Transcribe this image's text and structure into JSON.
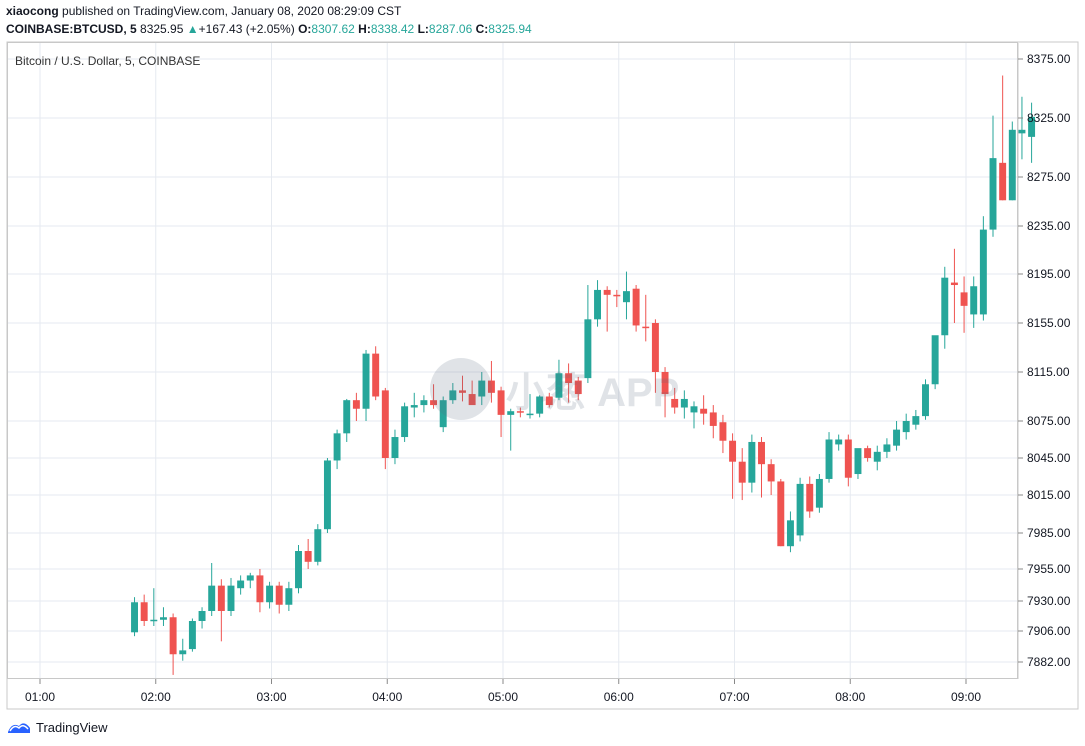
{
  "header": {
    "user": "xiaocong",
    "published_text": "published on TradingView.com, January 08, 2020 08:29:09 CST",
    "symbol": "COINBASE:BTCUSD, 5",
    "last": "8325.95",
    "arrow": "▲",
    "change": "+167.43 (+2.05%)",
    "o_label": "O:",
    "o_value": "8307.62",
    "h_label": "H:",
    "h_value": "8338.42",
    "l_label": "L:",
    "l_value": "8287.06",
    "c_label": "C:",
    "c_value": "8325.94"
  },
  "legend_title": "Bitcoin / U.S. Dollar, 5, COINBASE",
  "watermark": "小葱 APP",
  "footer": {
    "brand": "TradingView"
  },
  "colors": {
    "up": "#26a69a",
    "down": "#ef5350",
    "grid": "#e6eaf0",
    "axis_text": "#131722"
  },
  "chart_data": {
    "type": "candlestick",
    "x_ticks": [
      "01:00",
      "02:00",
      "03:00",
      "04:00",
      "05:00",
      "06:00",
      "07:00",
      "08:00",
      "09:00"
    ],
    "y_ticks": [
      7882,
      7906,
      7930,
      7955,
      7985,
      8015,
      8045,
      8075,
      8115,
      8155,
      8195,
      8235,
      8275,
      8325,
      8375
    ],
    "y_tick_labels": [
      "7882.00",
      "7906.00",
      "7930.00",
      "7955.00",
      "7985.00",
      "8015.00",
      "8045.00",
      "8075.00",
      "8115.00",
      "8155.00",
      "8195.00",
      "8235.00",
      "8275.00",
      "8325.00",
      "8375.00"
    ],
    "x_start_minute": 49,
    "interval_minutes": 5,
    "candles": [
      {
        "o": 7905,
        "h": 7933,
        "l": 7902,
        "c": 7929
      },
      {
        "o": 7929,
        "h": 7935,
        "l": 7910,
        "c": 7914
      },
      {
        "o": 7914,
        "h": 7940,
        "l": 7910,
        "c": 7915
      },
      {
        "o": 7915,
        "h": 7925,
        "l": 7910,
        "c": 7917
      },
      {
        "o": 7917,
        "h": 7920,
        "l": 7872,
        "c": 7888
      },
      {
        "o": 7888,
        "h": 7900,
        "l": 7883,
        "c": 7891
      },
      {
        "o": 7892,
        "h": 7916,
        "l": 7890,
        "c": 7914
      },
      {
        "o": 7914,
        "h": 7925,
        "l": 7908,
        "c": 7922
      },
      {
        "o": 7922,
        "h": 7960,
        "l": 7918,
        "c": 7942
      },
      {
        "o": 7942,
        "h": 7947,
        "l": 7898,
        "c": 7922
      },
      {
        "o": 7922,
        "h": 7948,
        "l": 7918,
        "c": 7942
      },
      {
        "o": 7940,
        "h": 7950,
        "l": 7935,
        "c": 7946
      },
      {
        "o": 7946,
        "h": 7952,
        "l": 7940,
        "c": 7950
      },
      {
        "o": 7950,
        "h": 7955,
        "l": 7921,
        "c": 7929
      },
      {
        "o": 7929,
        "h": 7945,
        "l": 7924,
        "c": 7942
      },
      {
        "o": 7942,
        "h": 7945,
        "l": 7920,
        "c": 7927
      },
      {
        "o": 7927,
        "h": 7945,
        "l": 7922,
        "c": 7940
      },
      {
        "o": 7940,
        "h": 7975,
        "l": 7936,
        "c": 7970
      },
      {
        "o": 7970,
        "h": 7980,
        "l": 7955,
        "c": 7961
      },
      {
        "o": 7961,
        "h": 7992,
        "l": 7958,
        "c": 7988
      },
      {
        "o": 7988,
        "h": 8045,
        "l": 7985,
        "c": 8043
      },
      {
        "o": 8043,
        "h": 8068,
        "l": 8036,
        "c": 8065
      },
      {
        "o": 8065,
        "h": 8093,
        "l": 8058,
        "c": 8092
      },
      {
        "o": 8092,
        "h": 8098,
        "l": 8075,
        "c": 8085
      },
      {
        "o": 8085,
        "h": 8133,
        "l": 8075,
        "c": 8130
      },
      {
        "o": 8130,
        "h": 8136,
        "l": 8092,
        "c": 8095
      },
      {
        "o": 8100,
        "h": 8102,
        "l": 8036,
        "c": 8045
      },
      {
        "o": 8045,
        "h": 8068,
        "l": 8040,
        "c": 8062
      },
      {
        "o": 8062,
        "h": 8090,
        "l": 8058,
        "c": 8087
      },
      {
        "o": 8086,
        "h": 8098,
        "l": 8078,
        "c": 8088
      },
      {
        "o": 8088,
        "h": 8096,
        "l": 8082,
        "c": 8092
      },
      {
        "o": 8092,
        "h": 8105,
        "l": 8085,
        "c": 8088
      },
      {
        "o": 8070,
        "h": 8095,
        "l": 8066,
        "c": 8092
      },
      {
        "o": 8092,
        "h": 8106,
        "l": 8089,
        "c": 8100
      },
      {
        "o": 8100,
        "h": 8112,
        "l": 8091,
        "c": 8098
      },
      {
        "o": 8097,
        "h": 8108,
        "l": 8090,
        "c": 8088
      },
      {
        "o": 8095,
        "h": 8115,
        "l": 8088,
        "c": 8108
      },
      {
        "o": 8108,
        "h": 8124,
        "l": 8090,
        "c": 8098
      },
      {
        "o": 8100,
        "h": 8103,
        "l": 8062,
        "c": 8080
      },
      {
        "o": 8080,
        "h": 8085,
        "l": 8051,
        "c": 8083
      },
      {
        "o": 8083,
        "h": 8086,
        "l": 8078,
        "c": 8082
      },
      {
        "o": 8080,
        "h": 8097,
        "l": 8077,
        "c": 8081
      },
      {
        "o": 8081,
        "h": 8096,
        "l": 8078,
        "c": 8095
      },
      {
        "o": 8095,
        "h": 8098,
        "l": 8086,
        "c": 8088
      },
      {
        "o": 8094,
        "h": 8125,
        "l": 8092,
        "c": 8114
      },
      {
        "o": 8114,
        "h": 8122,
        "l": 8090,
        "c": 8106
      },
      {
        "o": 8108,
        "h": 8111,
        "l": 8092,
        "c": 8097
      },
      {
        "o": 8110,
        "h": 8186,
        "l": 8106,
        "c": 8158
      },
      {
        "o": 8158,
        "h": 8190,
        "l": 8152,
        "c": 8182
      },
      {
        "o": 8182,
        "h": 8185,
        "l": 8148,
        "c": 8178
      },
      {
        "o": 8178,
        "h": 8182,
        "l": 8168,
        "c": 8177
      },
      {
        "o": 8172,
        "h": 8197,
        "l": 8158,
        "c": 8181
      },
      {
        "o": 8183,
        "h": 8186,
        "l": 8148,
        "c": 8153
      },
      {
        "o": 8152,
        "h": 8178,
        "l": 8140,
        "c": 8151
      },
      {
        "o": 8155,
        "h": 8158,
        "l": 8098,
        "c": 8115
      },
      {
        "o": 8115,
        "h": 8119,
        "l": 8078,
        "c": 8097
      },
      {
        "o": 8093,
        "h": 8102,
        "l": 8081,
        "c": 8086
      },
      {
        "o": 8086,
        "h": 8100,
        "l": 8077,
        "c": 8093
      },
      {
        "o": 8082,
        "h": 8091,
        "l": 8069,
        "c": 8087
      },
      {
        "o": 8085,
        "h": 8096,
        "l": 8072,
        "c": 8081
      },
      {
        "o": 8082,
        "h": 8088,
        "l": 8061,
        "c": 8071
      },
      {
        "o": 8074,
        "h": 8080,
        "l": 8049,
        "c": 8059
      },
      {
        "o": 8059,
        "h": 8065,
        "l": 8012,
        "c": 8042
      },
      {
        "o": 8042,
        "h": 8053,
        "l": 8011,
        "c": 8025
      },
      {
        "o": 8025,
        "h": 8064,
        "l": 8017,
        "c": 8058
      },
      {
        "o": 8058,
        "h": 8062,
        "l": 8013,
        "c": 8040
      },
      {
        "o": 8040,
        "h": 8044,
        "l": 8015,
        "c": 8026
      },
      {
        "o": 8026,
        "h": 8028,
        "l": 7974,
        "c": 7974
      },
      {
        "o": 7974,
        "h": 8002,
        "l": 7969,
        "c": 7995
      },
      {
        "o": 7983,
        "h": 8029,
        "l": 7978,
        "c": 8024
      },
      {
        "o": 8024,
        "h": 8030,
        "l": 7997,
        "c": 8002
      },
      {
        "o": 8005,
        "h": 8032,
        "l": 8001,
        "c": 8028
      },
      {
        "o": 8028,
        "h": 8066,
        "l": 8025,
        "c": 8060
      },
      {
        "o": 8056,
        "h": 8064,
        "l": 8051,
        "c": 8060
      },
      {
        "o": 8060,
        "h": 8064,
        "l": 8022,
        "c": 8029
      },
      {
        "o": 8032,
        "h": 8051,
        "l": 8028,
        "c": 8053
      },
      {
        "o": 8053,
        "h": 8055,
        "l": 8042,
        "c": 8045
      },
      {
        "o": 8042,
        "h": 8055,
        "l": 8035,
        "c": 8050
      },
      {
        "o": 8050,
        "h": 8061,
        "l": 8045,
        "c": 8056
      },
      {
        "o": 8055,
        "h": 8075,
        "l": 8051,
        "c": 8068
      },
      {
        "o": 8066,
        "h": 8081,
        "l": 8060,
        "c": 8075
      },
      {
        "o": 8072,
        "h": 8084,
        "l": 8068,
        "c": 8079
      },
      {
        "o": 8079,
        "h": 8109,
        "l": 8076,
        "c": 8105
      },
      {
        "o": 8105,
        "h": 8143,
        "l": 8101,
        "c": 8145
      },
      {
        "o": 8145,
        "h": 8201,
        "l": 8134,
        "c": 8192
      },
      {
        "o": 8188,
        "h": 8216,
        "l": 8155,
        "c": 8186
      },
      {
        "o": 8180,
        "h": 8193,
        "l": 8147,
        "c": 8169
      },
      {
        "o": 8162,
        "h": 8193,
        "l": 8151,
        "c": 8185
      },
      {
        "o": 8162,
        "h": 8243,
        "l": 8157,
        "c": 8232
      },
      {
        "o": 8232,
        "h": 8327,
        "l": 8226,
        "c": 8291
      },
      {
        "o": 8287,
        "h": 8361,
        "l": 8256,
        "c": 8256
      },
      {
        "o": 8256,
        "h": 8322,
        "l": 8256,
        "c": 8315
      },
      {
        "o": 8312,
        "h": 8343,
        "l": 8290,
        "c": 8315
      },
      {
        "o": 8309,
        "h": 8338,
        "l": 8287,
        "c": 8326
      }
    ]
  }
}
